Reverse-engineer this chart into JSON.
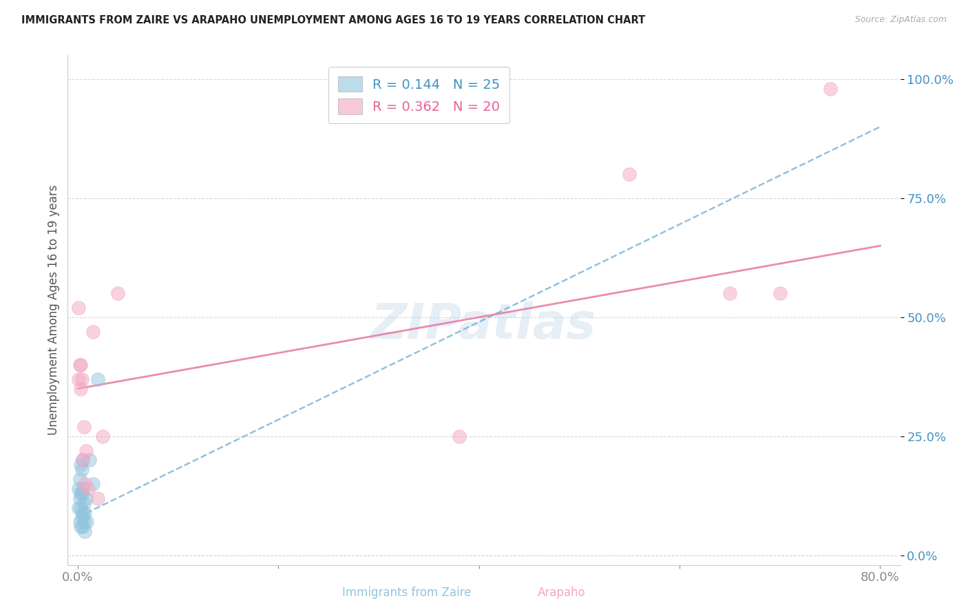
{
  "title": "IMMIGRANTS FROM ZAIRE VS ARAPAHO UNEMPLOYMENT AMONG AGES 16 TO 19 YEARS CORRELATION CHART",
  "source": "Source: ZipAtlas.com",
  "ylabel": "Unemployment Among Ages 16 to 19 years",
  "xlabel_blue": "Immigrants from Zaire",
  "xlabel_pink": "Arapaho",
  "xlim": [
    -0.01,
    0.82
  ],
  "ylim": [
    -0.02,
    1.05
  ],
  "blue_R": 0.144,
  "blue_N": 25,
  "pink_R": 0.362,
  "pink_N": 20,
  "blue_color": "#92c5de",
  "pink_color": "#f4a6c0",
  "blue_line_color": "#6aaed6",
  "pink_line_color": "#e878a0",
  "blue_text_color": "#4393c3",
  "pink_text_color": "#e8609a",
  "n_text_color": "#4393c3",
  "blue_x": [
    0.001,
    0.001,
    0.002,
    0.002,
    0.002,
    0.003,
    0.003,
    0.003,
    0.003,
    0.004,
    0.004,
    0.004,
    0.005,
    0.005,
    0.005,
    0.005,
    0.006,
    0.006,
    0.007,
    0.007,
    0.008,
    0.009,
    0.012,
    0.015,
    0.02
  ],
  "blue_y": [
    0.1,
    0.14,
    0.07,
    0.12,
    0.16,
    0.06,
    0.1,
    0.13,
    0.19,
    0.08,
    0.13,
    0.18,
    0.06,
    0.09,
    0.14,
    0.2,
    0.07,
    0.11,
    0.05,
    0.09,
    0.12,
    0.07,
    0.2,
    0.15,
    0.37
  ],
  "pink_x": [
    0.001,
    0.001,
    0.002,
    0.003,
    0.003,
    0.004,
    0.005,
    0.006,
    0.007,
    0.008,
    0.01,
    0.015,
    0.02,
    0.025,
    0.04,
    0.38,
    0.55,
    0.65,
    0.7,
    0.75
  ],
  "pink_y": [
    0.52,
    0.37,
    0.4,
    0.35,
    0.4,
    0.37,
    0.2,
    0.27,
    0.15,
    0.22,
    0.14,
    0.47,
    0.12,
    0.25,
    0.55,
    0.25,
    0.8,
    0.55,
    0.55,
    0.98
  ],
  "blue_trendline_x": [
    0.0,
    0.8
  ],
  "blue_trendline_y": [
    0.08,
    0.9
  ],
  "pink_trendline_x": [
    0.0,
    0.8
  ],
  "pink_trendline_y": [
    0.35,
    0.65
  ],
  "watermark": "ZIPatlas",
  "background_color": "#ffffff",
  "grid_color": "#d8d8d8",
  "yticks": [
    0.0,
    0.25,
    0.5,
    0.75,
    1.0
  ],
  "ytick_labels": [
    "0.0%",
    "25.0%",
    "50.0%",
    "75.0%",
    "100.0%"
  ],
  "xtick_vals": [
    0.0,
    0.2,
    0.4,
    0.6,
    0.8
  ],
  "xtick_labels": [
    "0.0%",
    "",
    "",
    "",
    "80.0%"
  ]
}
